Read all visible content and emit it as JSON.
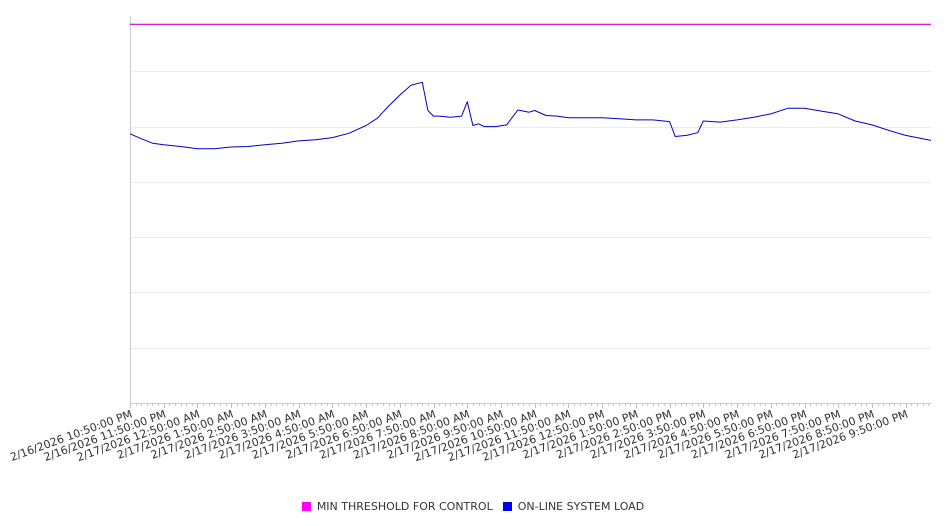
{
  "chart_data": {
    "type": "line",
    "title": "",
    "xlabel": "",
    "ylabel": "",
    "grid": true,
    "legend_position": "bottom",
    "x_range": [
      "2/16/2026 10:50:00 PM",
      "2/17/2026 10:35:00 PM"
    ],
    "y_range": [
      0,
      7
    ],
    "x_tick_labels": [
      "2/16/2026 10:50:00 PM",
      "2/16/2026 11:50:00 PM",
      "2/17/2026 12:50:00 AM",
      "2/17/2026 1:50:00 AM",
      "2/17/2026 2:50:00 AM",
      "2/17/2026 3:50:00 AM",
      "2/17/2026 4:50:00 AM",
      "2/17/2026 5:50:00 AM",
      "2/17/2026 6:50:00 AM",
      "2/17/2026 7:50:00 AM",
      "2/17/2026 8:50:00 AM",
      "2/17/2026 9:50:00 AM",
      "2/17/2026 10:50:00 AM",
      "2/17/2026 11:50:00 AM",
      "2/17/2026 12:50:00 PM",
      "2/17/2026 1:50:00 PM",
      "2/17/2026 2:50:00 PM",
      "2/17/2026 3:50:00 PM",
      "2/17/2026 4:50:00 PM",
      "2/17/2026 5:50:00 PM",
      "2/17/2026 6:50:00 PM",
      "2/17/2026 7:50:00 PM",
      "2/17/2026 8:50:00 PM",
      "2/17/2026 9:50:00 PM"
    ],
    "series": [
      {
        "name": "MIN THRESHOLD FOR CONTROL",
        "color": "#ff00ff",
        "x": [
          "2/16/2026 10:50:00 PM",
          "2/17/2026 10:35:00 PM"
        ],
        "y": [
          6.85,
          6.85
        ]
      },
      {
        "name": "ON-LINE SYSTEM LOAD",
        "color": "#0000cc",
        "x": [
          "2/16/2026 10:50:00 PM",
          "2/16/2026 11:10:00 PM",
          "2/16/2026 11:30:00 PM",
          "2/16/2026 11:50:00 PM",
          "2/17/2026 12:20:00 AM",
          "2/17/2026 12:50:00 AM",
          "2/17/2026 1:20:00 AM",
          "2/17/2026 1:50:00 AM",
          "2/17/2026 2:20:00 AM",
          "2/17/2026 2:50:00 AM",
          "2/17/2026 3:20:00 AM",
          "2/17/2026 3:50:00 AM",
          "2/17/2026 4:20:00 AM",
          "2/17/2026 4:50:00 AM",
          "2/17/2026 5:20:00 AM",
          "2/17/2026 5:50:00 AM",
          "2/17/2026 6:10:00 AM",
          "2/17/2026 6:30:00 AM",
          "2/17/2026 6:50:00 AM",
          "2/17/2026 7:10:00 AM",
          "2/17/2026 7:30:00 AM",
          "2/17/2026 7:40:00 AM",
          "2/17/2026 7:50:00 AM",
          "2/17/2026 8:00:00 AM",
          "2/17/2026 8:20:00 AM",
          "2/17/2026 8:40:00 AM",
          "2/17/2026 8:50:00 AM",
          "2/17/2026 9:00:00 AM",
          "2/17/2026 9:10:00 AM",
          "2/17/2026 9:20:00 AM",
          "2/17/2026 9:40:00 AM",
          "2/17/2026 10:00:00 AM",
          "2/17/2026 10:20:00 AM",
          "2/17/2026 10:40:00 AM",
          "2/17/2026 10:50:00 AM",
          "2/17/2026 11:10:00 AM",
          "2/17/2026 11:30:00 AM",
          "2/17/2026 11:50:00 AM",
          "2/17/2026 12:20:00 PM",
          "2/17/2026 12:50:00 PM",
          "2/17/2026 1:20:00 PM",
          "2/17/2026 1:50:00 PM",
          "2/17/2026 2:20:00 PM",
          "2/17/2026 2:50:00 PM",
          "2/17/2026 3:00:00 PM",
          "2/17/2026 3:20:00 PM",
          "2/17/2026 3:40:00 PM",
          "2/17/2026 3:50:00 PM",
          "2/17/2026 4:20:00 PM",
          "2/17/2026 4:50:00 PM",
          "2/17/2026 5:20:00 PM",
          "2/17/2026 5:50:00 PM",
          "2/17/2026 6:20:00 PM",
          "2/17/2026 6:50:00 PM",
          "2/17/2026 7:20:00 PM",
          "2/17/2026 7:50:00 PM",
          "2/17/2026 8:20:00 PM",
          "2/17/2026 8:50:00 PM",
          "2/17/2026 9:20:00 PM",
          "2/17/2026 9:50:00 PM",
          "2/17/2026 10:20:00 PM",
          "2/17/2026 10:35:00 PM"
        ],
        "y": [
          4.87,
          4.78,
          4.7,
          4.67,
          4.64,
          4.6,
          4.6,
          4.63,
          4.64,
          4.67,
          4.7,
          4.74,
          4.76,
          4.8,
          4.88,
          5.02,
          5.15,
          5.37,
          5.57,
          5.75,
          5.8,
          5.29,
          5.19,
          5.19,
          5.17,
          5.19,
          5.45,
          5.02,
          5.05,
          5.0,
          5.0,
          5.03,
          5.3,
          5.26,
          5.29,
          5.2,
          5.19,
          5.16,
          5.16,
          5.16,
          5.14,
          5.12,
          5.12,
          5.09,
          4.82,
          4.84,
          4.89,
          5.1,
          5.08,
          5.12,
          5.17,
          5.23,
          5.33,
          5.33,
          5.28,
          5.23,
          5.1,
          5.03,
          4.93,
          4.84,
          4.78,
          4.75
        ]
      }
    ]
  }
}
